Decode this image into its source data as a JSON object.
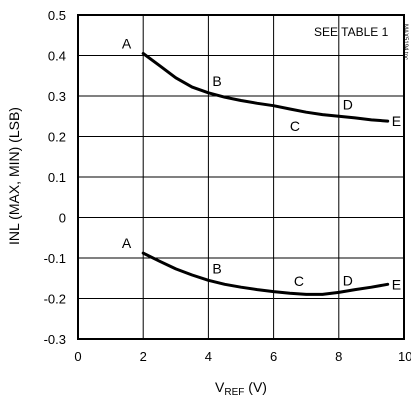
{
  "chart_data": {
    "type": "line",
    "xlabel_main": "V",
    "xlabel_sub": "REF",
    "xlabel_unit": " (V)",
    "ylabel": "INL (MAX, MIN) (LSB)",
    "xlim": [
      0,
      10
    ],
    "ylim": [
      -0.3,
      0.5
    ],
    "xticks": [
      "0",
      "2",
      "4",
      "6",
      "8",
      "10"
    ],
    "yticks": [
      "0.5",
      "0.4",
      "0.3",
      "0.2",
      "0.1",
      "0",
      "-0.1",
      "-0.2",
      "-0.3"
    ],
    "grid": true,
    "annotation": "SEE TABLE 1",
    "side_code": "MAX5194 toc",
    "series": [
      {
        "points": [
          {
            "x": 2.0,
            "y": 0.405,
            "label": "A"
          },
          {
            "x": 2.5,
            "y": 0.375
          },
          {
            "x": 3.0,
            "y": 0.345
          },
          {
            "x": 3.5,
            "y": 0.322
          },
          {
            "x": 4.0,
            "y": 0.308,
            "label": "B"
          },
          {
            "x": 4.5,
            "y": 0.297
          },
          {
            "x": 5.0,
            "y": 0.289
          },
          {
            "x": 5.5,
            "y": 0.282
          },
          {
            "x": 6.0,
            "y": 0.276
          },
          {
            "x": 6.5,
            "y": 0.268,
            "label": "C"
          },
          {
            "x": 7.0,
            "y": 0.26
          },
          {
            "x": 7.5,
            "y": 0.254
          },
          {
            "x": 8.0,
            "y": 0.25,
            "label": "D"
          },
          {
            "x": 8.5,
            "y": 0.246
          },
          {
            "x": 9.0,
            "y": 0.241
          },
          {
            "x": 9.5,
            "y": 0.238,
            "label": "E"
          }
        ]
      },
      {
        "points": [
          {
            "x": 2.0,
            "y": -0.088,
            "label": "A"
          },
          {
            "x": 2.5,
            "y": -0.108
          },
          {
            "x": 3.0,
            "y": -0.127
          },
          {
            "x": 3.5,
            "y": -0.142
          },
          {
            "x": 4.0,
            "y": -0.155,
            "label": "B"
          },
          {
            "x": 4.5,
            "y": -0.165
          },
          {
            "x": 5.0,
            "y": -0.172
          },
          {
            "x": 5.5,
            "y": -0.178
          },
          {
            "x": 6.0,
            "y": -0.183
          },
          {
            "x": 6.5,
            "y": -0.187,
            "label": "C"
          },
          {
            "x": 7.0,
            "y": -0.19
          },
          {
            "x": 7.5,
            "y": -0.19
          },
          {
            "x": 8.0,
            "y": -0.185,
            "label": "D"
          },
          {
            "x": 8.5,
            "y": -0.178
          },
          {
            "x": 9.0,
            "y": -0.172
          },
          {
            "x": 9.5,
            "y": -0.165,
            "label": "E"
          }
        ]
      }
    ]
  }
}
